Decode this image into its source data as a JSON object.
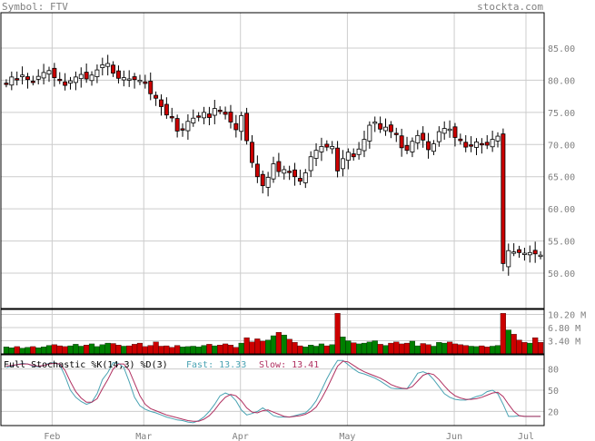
{
  "header": {
    "symbol": "Symbol: FTV",
    "site": "stockta.com"
  },
  "colors": {
    "up": "#ffffff",
    "down": "#cc0000",
    "vol_up": "#008000",
    "vol_down": "#cc0000",
    "grid": "#cccccc",
    "k_line": "#4aa3b3",
    "d_line": "#b03060",
    "text": "#808080"
  },
  "chart_data": [
    {
      "type": "candlestick",
      "title": "",
      "x_ticks": [
        "Feb",
        "Mar",
        "Apr",
        "May",
        "Jun",
        "Jul"
      ],
      "y_ticks": [
        "85.00",
        "80.00",
        "75.00",
        "70.00",
        "65.00",
        "60.00",
        "55.00",
        "50.00"
      ],
      "ylim": [
        44.5,
        90.5
      ],
      "closes": [
        79.5,
        80.5,
        80.2,
        80.8,
        80.1,
        79.8,
        80.6,
        81.2,
        81.5,
        80.4,
        80.0,
        79.2,
        79.9,
        80.5,
        80.9,
        80.2,
        80.8,
        81.6,
        82.4,
        82.6,
        81.1,
        80.3,
        80.4,
        80.2,
        80.1,
        80.0,
        79.5,
        77.9,
        77.2,
        75.9,
        74.6,
        74.3,
        72.1,
        72.4,
        73.6,
        74.1,
        74.4,
        75.0,
        74.2,
        75.6,
        75.3,
        74.7,
        73.5,
        72.3,
        74.5,
        70.6,
        67.2,
        65.0,
        63.6,
        64.9,
        67.0,
        65.8,
        66.1,
        65.7,
        65.0,
        64.3,
        65.6,
        68.1,
        69.1,
        69.7,
        69.6,
        69.7,
        65.9,
        67.8,
        68.8,
        68.1,
        69.3,
        70.8,
        73.0,
        73.5,
        72.4,
        72.7,
        72.0,
        71.6,
        69.5,
        69.1,
        70.5,
        71.4,
        70.7,
        69.2,
        70.1,
        72.0,
        72.5,
        72.4,
        71.1,
        70.6,
        69.6,
        69.8,
        70.4,
        70.0,
        69.9,
        70.8,
        71.3,
        51.5,
        53.5,
        53.3,
        53.2,
        53.1,
        53.2,
        53.0,
        52.8
      ],
      "gap_after": 93
    },
    {
      "type": "bar",
      "title": "",
      "y_ticks": [
        "10.20 M",
        "6.80 M",
        "3.40 M"
      ],
      "ylim": [
        0,
        11.5
      ],
      "values": [
        1.8,
        1.6,
        1.9,
        1.5,
        1.7,
        1.9,
        1.6,
        1.8,
        2.2,
        2.4,
        2.1,
        1.9,
        2.1,
        2.5,
        2.0,
        2.3,
        2.6,
        1.9,
        2.4,
        2.8,
        2.7,
        2.3,
        2.0,
        2.1,
        2.5,
        2.8,
        1.9,
        2.2,
        3.1,
        2.0,
        2.1,
        1.7,
        2.2,
        1.8,
        1.9,
        2.0,
        1.8,
        2.2,
        2.5,
        2.1,
        2.3,
        2.6,
        2.3,
        1.7,
        2.8,
        4.2,
        3.1,
        3.9,
        3.3,
        3.6,
        4.7,
        5.6,
        4.9,
        3.8,
        3.0,
        2.1,
        1.8,
        2.3,
        2.0,
        2.6,
        2.1,
        2.4,
        10.5,
        4.4,
        3.4,
        2.9,
        2.6,
        2.8,
        3.1,
        3.4,
        2.5,
        2.2,
        2.8,
        3.1,
        2.6,
        2.8,
        3.3,
        2.1,
        2.7,
        2.4,
        2.0,
        3.0,
        2.8,
        3.1,
        2.6,
        2.4,
        2.2,
        2.0,
        1.9,
        2.1,
        1.8,
        2.0,
        2.2,
        10.5,
        6.2,
        5.1,
        3.6,
        3.0,
        2.8,
        4.2,
        3.0
      ],
      "ups": [
        1,
        1,
        0,
        1,
        1,
        0,
        1,
        1,
        1,
        0,
        0,
        0,
        1,
        1,
        1,
        0,
        1,
        1,
        1,
        1,
        0,
        0,
        1,
        0,
        0,
        0,
        0,
        0,
        0,
        0,
        0,
        0,
        0,
        1,
        1,
        1,
        1,
        1,
        0,
        1,
        0,
        0,
        0,
        0,
        1,
        0,
        0,
        0,
        0,
        1,
        1,
        0,
        1,
        0,
        0,
        0,
        1,
        1,
        1,
        1,
        0,
        1,
        0,
        1,
        1,
        0,
        1,
        1,
        1,
        1,
        0,
        1,
        0,
        0,
        0,
        0,
        1,
        1,
        0,
        0,
        1,
        1,
        1,
        0,
        0,
        0,
        0,
        1,
        1,
        0,
        0,
        1,
        1,
        0,
        1,
        0,
        0,
        0,
        1,
        0,
        0
      ]
    },
    {
      "type": "line",
      "title": "Full Stochastic %K(14,3) %D(3)",
      "fast_label": "Fast: 13.33",
      "slow_label": "Slow: 13.41",
      "y_ticks": [
        "80",
        "50",
        "20"
      ],
      "ylim": [
        0,
        100
      ],
      "series": [
        {
          "name": "Fast",
          "values": [
            82,
            84,
            86,
            88,
            87,
            84,
            83,
            85,
            88,
            89,
            86,
            70,
            50,
            40,
            34,
            30,
            33,
            45,
            65,
            75,
            89,
            88,
            82,
            62,
            40,
            28,
            23,
            20,
            18,
            15,
            12,
            10,
            8,
            7,
            5,
            4,
            7,
            12,
            20,
            30,
            42,
            46,
            43,
            35,
            22,
            15,
            17,
            20,
            25,
            20,
            14,
            12,
            12,
            12,
            14,
            16,
            18,
            25,
            35,
            50,
            66,
            80,
            92,
            92,
            86,
            80,
            75,
            73,
            70,
            67,
            63,
            58,
            53,
            52,
            52,
            52,
            62,
            74,
            76,
            73,
            65,
            55,
            45,
            40,
            37,
            36,
            36,
            38,
            41,
            43,
            48,
            50,
            45,
            30,
            13,
            13,
            14,
            13,
            13,
            13,
            13
          ]
        },
        {
          "name": "Slow",
          "values": [
            84,
            85,
            86,
            87,
            87,
            85,
            84,
            85,
            87,
            88,
            87,
            78,
            62,
            48,
            39,
            33,
            33,
            38,
            52,
            65,
            80,
            87,
            87,
            78,
            60,
            42,
            30,
            24,
            21,
            18,
            15,
            13,
            11,
            9,
            7,
            6,
            6,
            9,
            14,
            22,
            32,
            40,
            44,
            42,
            35,
            25,
            19,
            18,
            21,
            22,
            19,
            16,
            13,
            12,
            13,
            14,
            16,
            20,
            26,
            38,
            52,
            68,
            84,
            91,
            90,
            85,
            80,
            76,
            73,
            70,
            67,
            63,
            58,
            55,
            53,
            52,
            55,
            63,
            71,
            74,
            72,
            65,
            56,
            48,
            42,
            39,
            37,
            37,
            38,
            40,
            43,
            46,
            47,
            41,
            30,
            20,
            14,
            13,
            13,
            13,
            13
          ]
        }
      ]
    }
  ]
}
